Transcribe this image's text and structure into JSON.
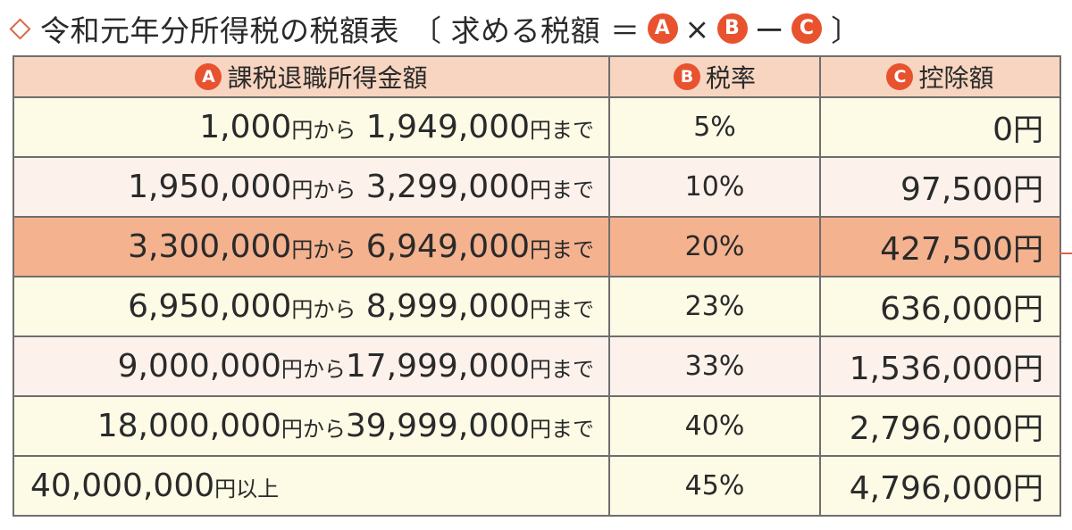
{
  "title": {
    "text": "令和元年分所得税の税額表",
    "bracket_open": "〔",
    "formula_label": "求める税額 ＝",
    "badge_a": "A",
    "times": "×",
    "badge_b": "B",
    "minus": "ー",
    "badge_c": "C",
    "bracket_close": "〕"
  },
  "table": {
    "headers": [
      {
        "badge": "A",
        "label": "課税退職所得金額"
      },
      {
        "badge": "B",
        "label": "税率"
      },
      {
        "badge": "C",
        "label": "控除額"
      }
    ],
    "rows": [
      {
        "from": "1,000",
        "from_unit": "円から",
        "to": "1,949,000",
        "to_unit": "円まで",
        "rate": "5%",
        "deduction": "0",
        "deduction_unit": "円"
      },
      {
        "from": "1,950,000",
        "from_unit": "円から",
        "to": "3,299,000",
        "to_unit": "円まで",
        "rate": "10%",
        "deduction": "97,500",
        "deduction_unit": "円"
      },
      {
        "from": "3,300,000",
        "from_unit": "円から",
        "to": "6,949,000",
        "to_unit": "円まで",
        "rate": "20%",
        "deduction": "427,500",
        "deduction_unit": "円"
      },
      {
        "from": "6,950,000",
        "from_unit": "円から",
        "to": "8,999,000",
        "to_unit": "円まで",
        "rate": "23%",
        "deduction": "636,000",
        "deduction_unit": "円"
      },
      {
        "from": "9,000,000",
        "from_unit": "円から",
        "to": "17,999,000",
        "to_unit": "円まで",
        "rate": "33%",
        "deduction": "1,536,000",
        "deduction_unit": "円"
      },
      {
        "from": "18,000,000",
        "from_unit": "円から",
        "to": "39,999,000",
        "to_unit": "円まで",
        "rate": "40%",
        "deduction": "2,796,000",
        "deduction_unit": "円"
      }
    ],
    "last_row": {
      "amount": "40,000,000",
      "unit": "円以上",
      "rate": "45%",
      "deduction": "4,796,000",
      "deduction_unit": "円"
    }
  },
  "colors": {
    "badge": "#e8522e",
    "header_bg": "#f7d5c0",
    "row_bg": "#fdfbe6",
    "row_alt_bg": "#fdf1eb",
    "highlight_bg": "#f4b28f"
  }
}
